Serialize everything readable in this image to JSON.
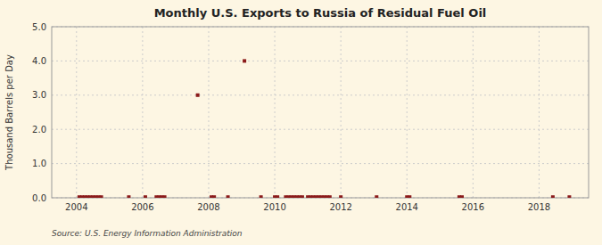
{
  "chart_data": {
    "type": "scatter",
    "title": "Monthly U.S. Exports to Russia of Residual Fuel Oil",
    "y_label": "Thousand Barrels per Day",
    "annotations": [
      "Source: U.S. Energy Information Administration"
    ],
    "color": "#8b1a1a",
    "marker": "square",
    "grid": true,
    "xlim": [
      2003.25,
      2019.5
    ],
    "xticks": [
      2004,
      2006,
      2008,
      2010,
      2012,
      2014,
      2016,
      2018
    ],
    "ylim": [
      0.0,
      5.0
    ],
    "yticks": [
      {
        "value": 0.0,
        "label": "0.0"
      },
      {
        "value": 1.0,
        "label": "1.0"
      },
      {
        "value": 2.0,
        "label": "2.0"
      },
      {
        "value": 3.0,
        "label": "3.0"
      },
      {
        "value": 4.0,
        "label": "4.0"
      },
      {
        "value": 5.0,
        "label": "5.0"
      }
    ],
    "x": [
      2004.083,
      2004.167,
      2004.25,
      2004.333,
      2004.417,
      2004.5,
      2004.583,
      2004.667,
      2004.75,
      2005.583,
      2006.083,
      2006.417,
      2006.5,
      2006.583,
      2006.667,
      2007.667,
      2008.083,
      2008.167,
      2008.583,
      2009.083,
      2009.583,
      2010.0,
      2010.083,
      2010.333,
      2010.417,
      2010.5,
      2010.583,
      2010.667,
      2010.75,
      2010.833,
      2011.0,
      2011.083,
      2011.167,
      2011.25,
      2011.333,
      2011.417,
      2011.5,
      2011.583,
      2011.667,
      2012.0,
      2013.083,
      2014.0,
      2014.083,
      2015.583,
      2015.667,
      2018.417,
      2018.917
    ],
    "values": [
      0.02,
      0.02,
      0.02,
      0.02,
      0.02,
      0.02,
      0.02,
      0.02,
      0.02,
      0.02,
      0.02,
      0.02,
      0.02,
      0.02,
      0.02,
      3.0,
      0.02,
      0.02,
      0.02,
      4.0,
      0.02,
      0.02,
      0.02,
      0.02,
      0.02,
      0.02,
      0.02,
      0.02,
      0.02,
      0.02,
      0.02,
      0.02,
      0.02,
      0.02,
      0.02,
      0.02,
      0.02,
      0.02,
      0.02,
      0.02,
      0.02,
      0.02,
      0.02,
      0.02,
      0.02,
      0.02,
      0.02
    ]
  }
}
